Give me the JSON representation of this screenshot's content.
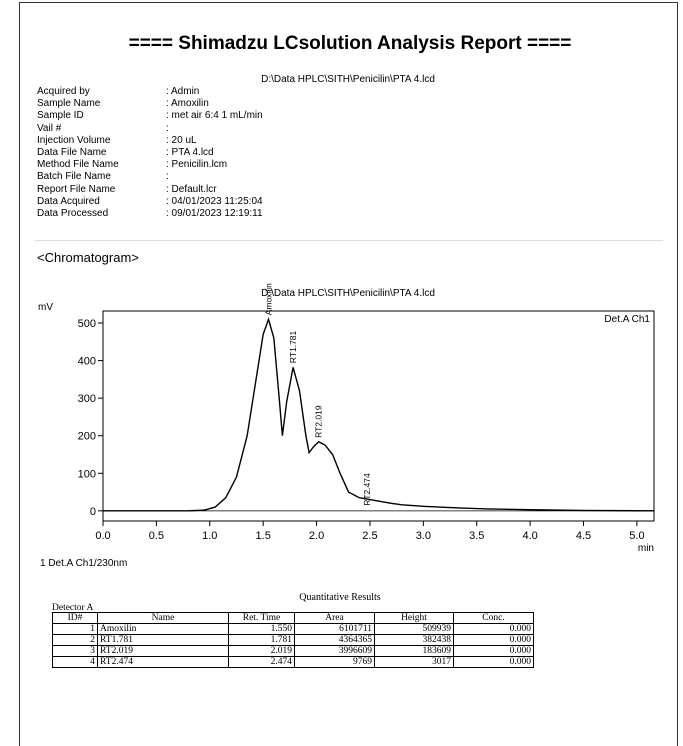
{
  "header": {
    "title": "==== Shimadzu LCsolution Analysis Report ====",
    "file_path": "D:\\Data HPLC\\SITH\\Penicilin\\PTA 4.lcd"
  },
  "info": [
    [
      "Acquired by",
      ": Admin"
    ],
    [
      "Sample Name",
      ": Amoxilin"
    ],
    [
      "Sample ID",
      ": met air 6:4 1 mL/min"
    ],
    [
      "Vail #",
      ":"
    ],
    [
      "Injection Volume",
      ": 20 uL"
    ],
    [
      "Data File Name",
      ": PTA 4.lcd"
    ],
    [
      "Method File Name",
      ": Penicilin.lcm"
    ],
    [
      "Batch File Name",
      ":"
    ],
    [
      "Report File Name",
      ": Default.lcr"
    ],
    [
      "Data Acquired",
      ": 04/01/2023 11:25:04"
    ],
    [
      "Data Processed",
      ": 09/01/2023 12:19:11"
    ]
  ],
  "section": "<Chromatogram>",
  "chart_data": {
    "type": "line",
    "title": "D:\\Data HPLC\\SITH\\Penicilin\\PTA 4.lcd",
    "y_label": "mV",
    "x_label": "min",
    "legend": "Det.A Ch1",
    "footer": "1 Det.A Ch1/230nm",
    "color": "#000000",
    "x": [
      0,
      0.8,
      0.95,
      1.05,
      1.15,
      1.25,
      1.35,
      1.45,
      1.5,
      1.55,
      1.6,
      1.65,
      1.68,
      1.72,
      1.78,
      1.84,
      1.9,
      1.93,
      1.97,
      2.02,
      2.08,
      2.15,
      2.22,
      2.3,
      2.4,
      2.5,
      2.6,
      2.7,
      2.8,
      3.0,
      3.3,
      3.6,
      4.0,
      4.5,
      5.16
    ],
    "values": [
      0,
      0,
      2,
      10,
      35,
      90,
      200,
      380,
      470,
      510,
      460,
      300,
      200,
      290,
      382,
      320,
      200,
      155,
      170,
      184,
      175,
      150,
      100,
      50,
      35,
      30,
      25,
      20,
      16,
      12,
      8,
      5,
      3,
      1,
      0
    ],
    "xlim": [
      0,
      5.16
    ],
    "ylim": [
      -27,
      532
    ],
    "xticks": [
      {
        "value": 0,
        "label": "0.0"
      },
      {
        "value": 0.5,
        "label": "0.5"
      },
      {
        "value": 1,
        "label": "1.0"
      },
      {
        "value": 1.5,
        "label": "1.5"
      },
      {
        "value": 2,
        "label": "2.0"
      },
      {
        "value": 2.5,
        "label": "2.5"
      },
      {
        "value": 3,
        "label": "3.0"
      },
      {
        "value": 3.5,
        "label": "3.5"
      },
      {
        "value": 4,
        "label": "4.0"
      },
      {
        "value": 4.5,
        "label": "4.5"
      },
      {
        "value": 5,
        "label": "5.0"
      }
    ],
    "yticks": [
      0,
      100,
      200,
      300,
      400,
      500
    ]
  },
  "table": {
    "title": "Quantitative Results",
    "detector": "Detector A",
    "header": [
      "ID#",
      "Name",
      "Ret. Time",
      "Area",
      "Height",
      "Conc."
    ],
    "rows": [
      [
        "1",
        "Amoxilin",
        "1.550",
        "6101711",
        "509939",
        "0.000"
      ],
      [
        "2",
        "RT1.781",
        "1.781",
        "4364365",
        "382438",
        "0.000"
      ],
      [
        "3",
        "RT2.019",
        "2.019",
        "3996609",
        "183609",
        "0.000"
      ],
      [
        "4",
        "RT2.474",
        "2.474",
        "9769",
        "3017",
        "0.000"
      ]
    ]
  }
}
